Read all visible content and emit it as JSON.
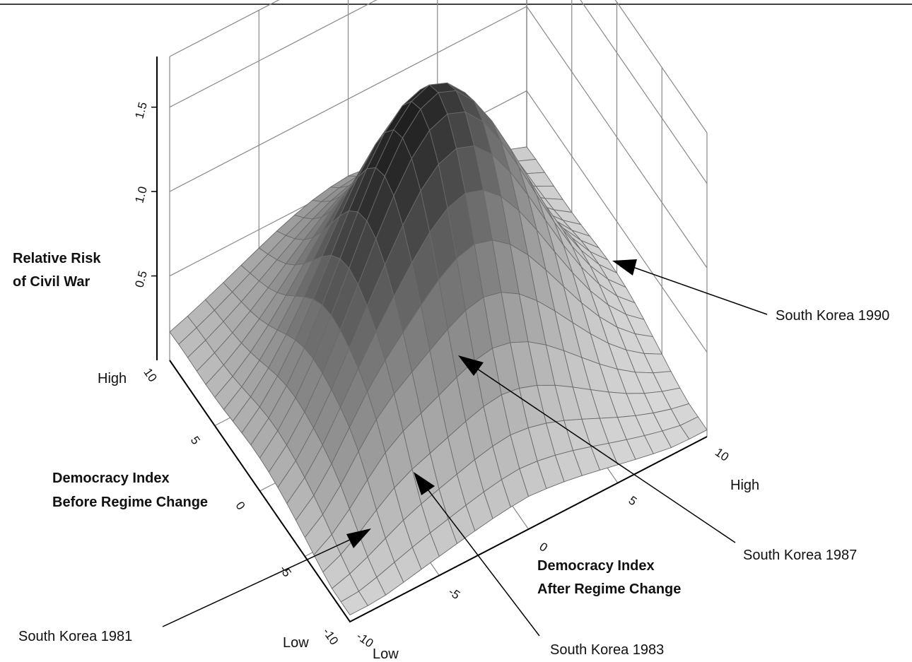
{
  "chart_data": {
    "type": "surface3d",
    "title": "",
    "z_axis": {
      "label_line1": "Relative Risk",
      "label_line2": "of Civil War",
      "ticks": [
        "0.5",
        "1.0",
        "1.5"
      ],
      "range": [
        0,
        1.8
      ]
    },
    "x_axis": {
      "label_line1": "Democracy Index",
      "label_line2": "Before Regime Change",
      "ticks": [
        "-10",
        "-5",
        "0",
        "5",
        "10"
      ],
      "low_label": "Low",
      "high_label": "High",
      "range": [
        -10,
        10
      ]
    },
    "y_axis": {
      "label_line1": "Democracy Index",
      "label_line2": "After Regime Change",
      "ticks": [
        "-10",
        "-5",
        "0",
        "5",
        "10"
      ],
      "low_label": "Low",
      "high_label": "High",
      "range": [
        -10,
        10
      ]
    },
    "surface": {
      "description_peaks": [
        {
          "before": 0,
          "after": 0,
          "risk": 1.75
        },
        {
          "before": 10,
          "after": 0,
          "risk": 0.4
        }
      ],
      "grid_cells": 20
    },
    "annotations": [
      {
        "label": "South Korea 1981",
        "before": -7,
        "after": -9
      },
      {
        "label": "South Korea 1983",
        "before": -7,
        "after": -1
      },
      {
        "label": "South Korea 1987",
        "before": 7,
        "after": 1
      },
      {
        "label": "South Korea 1990",
        "before": 10,
        "after": 9
      }
    ]
  }
}
